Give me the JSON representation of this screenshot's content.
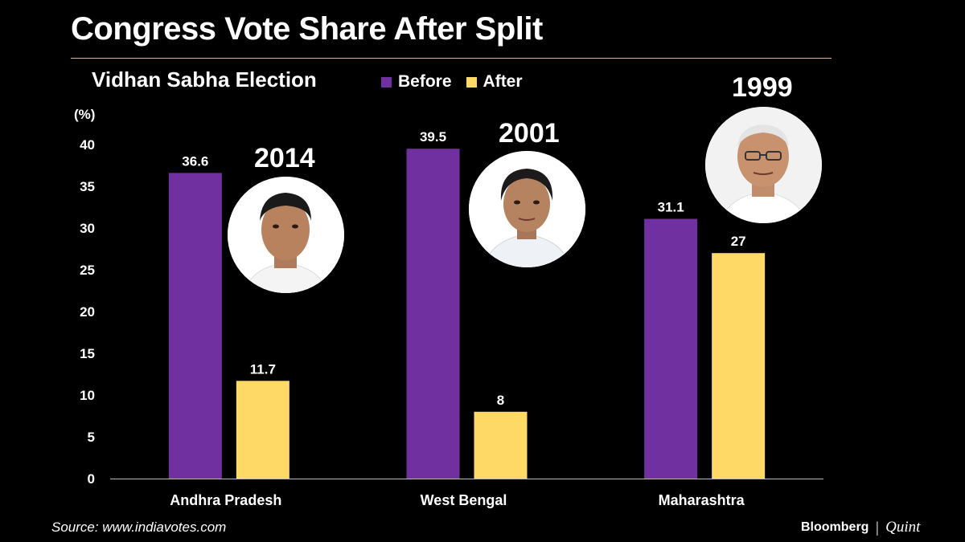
{
  "header": {
    "title": "Congress Vote Share After Split",
    "subtitle": "Vidhan Sabha Election"
  },
  "colors": {
    "before": "#7030a0",
    "after": "#ffd966",
    "rule": "#d9b39a"
  },
  "annotations": {
    "years": [
      "2014",
      "2001",
      "1999"
    ],
    "photo_icons": [
      "portrait-photo-andhra-pradesh",
      "portrait-photo-west-bengal",
      "portrait-photo-maharashtra"
    ]
  },
  "footer": {
    "source": "Source: www.indiavotes.com",
    "brand_primary": "Bloomberg",
    "brand_separator": "|",
    "brand_secondary": "Quint"
  },
  "chart_data": {
    "type": "bar",
    "categories": [
      "Andhra Pradesh",
      "West Bengal",
      "Maharashtra"
    ],
    "series": [
      {
        "name": "Before",
        "values": [
          36.6,
          39.5,
          31.1
        ],
        "labels": [
          "36.6",
          "39.5",
          "31.1"
        ]
      },
      {
        "name": "After",
        "values": [
          11.7,
          8,
          27
        ],
        "labels": [
          "11.7",
          "8",
          "27"
        ]
      }
    ],
    "ylabel": "(%)",
    "ylim": [
      0,
      40
    ],
    "yticks": [
      "0",
      "5",
      "10",
      "15",
      "20",
      "25",
      "30",
      "35",
      "40"
    ],
    "grid": false,
    "legend_placement": "top-center"
  }
}
